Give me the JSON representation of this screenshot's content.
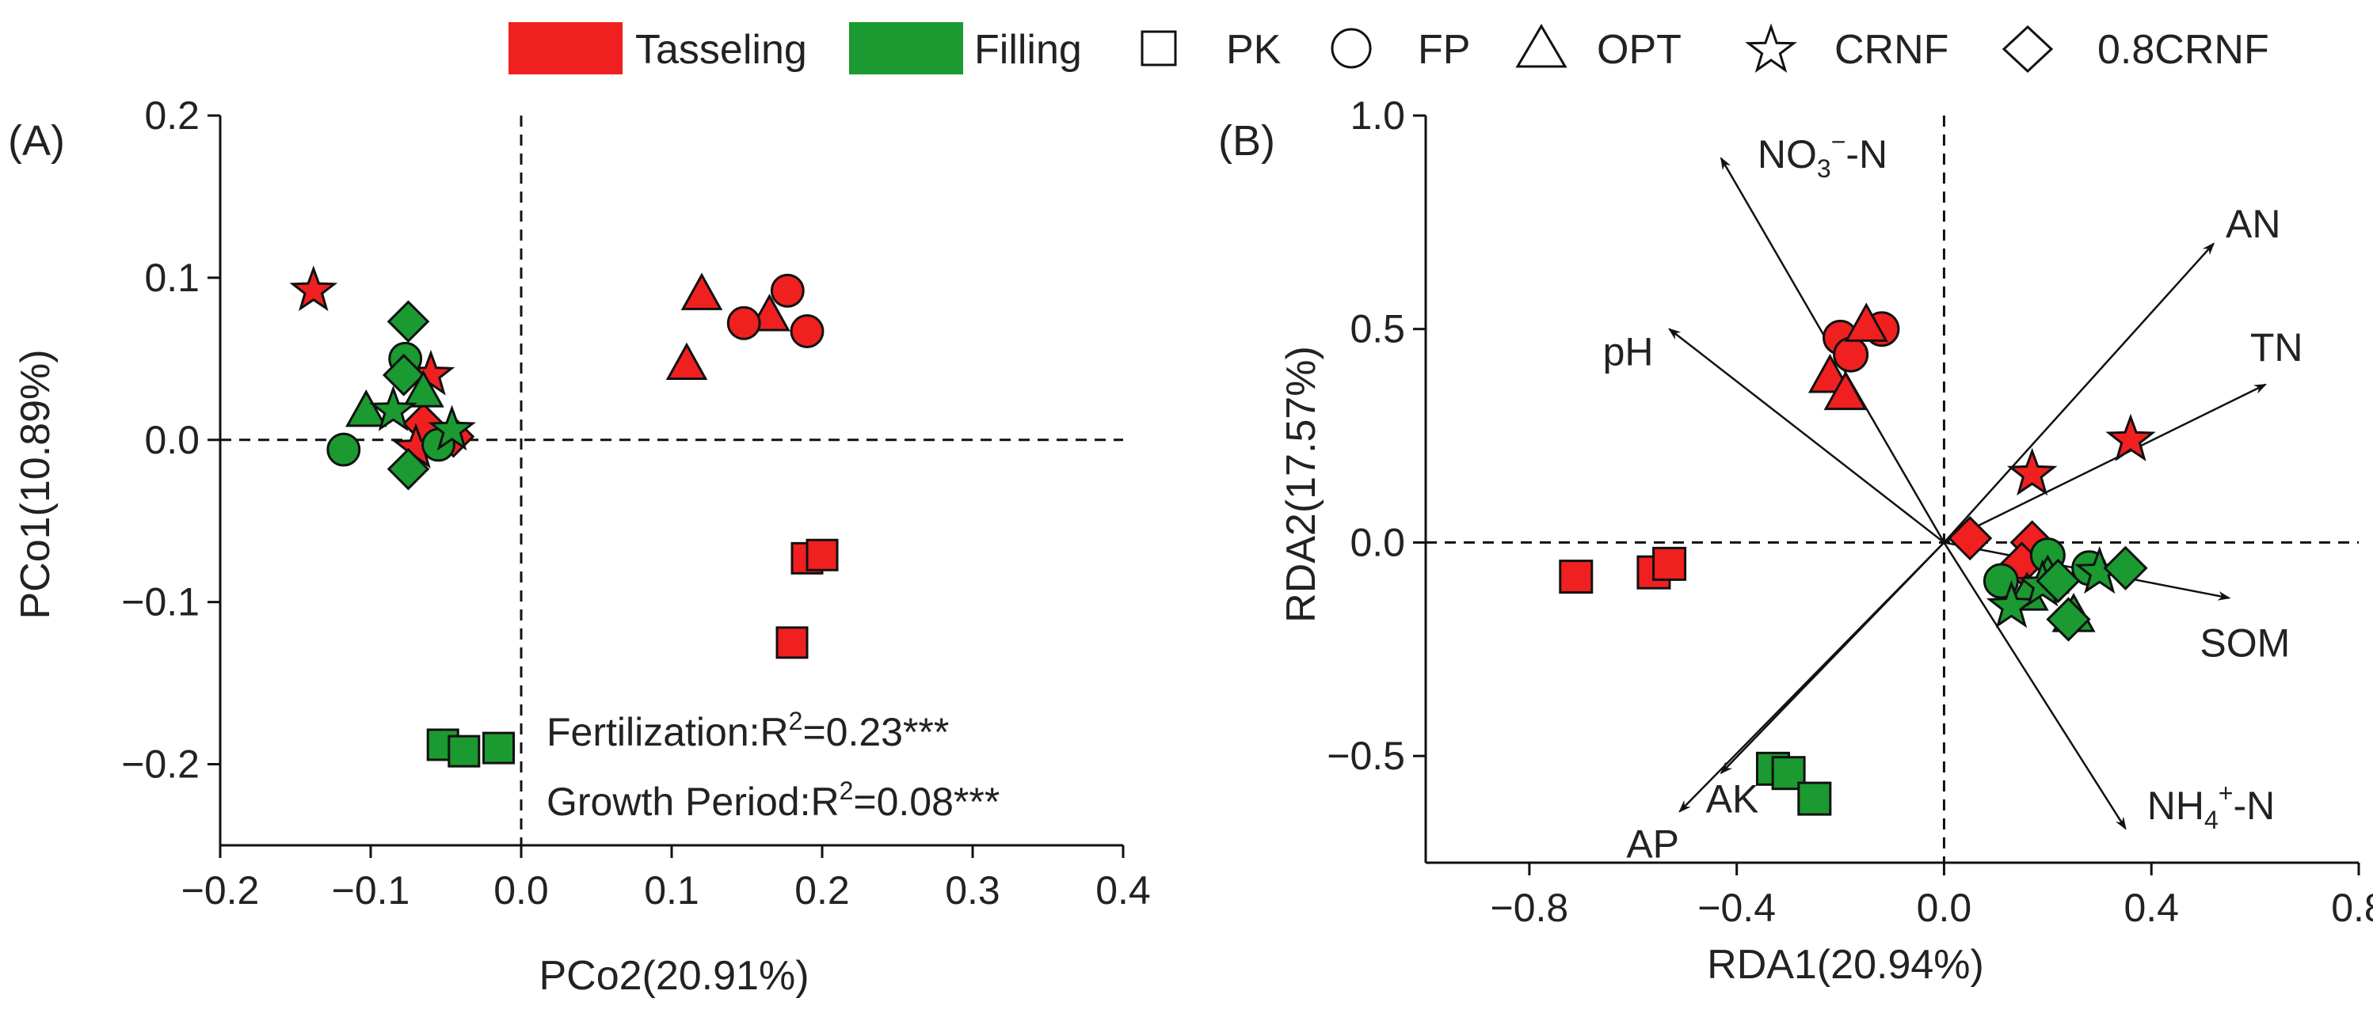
{
  "legend": {
    "colors": [
      {
        "label": "Tasseling",
        "color": "#f02020"
      },
      {
        "label": "Filling",
        "color": "#1a9a30"
      }
    ],
    "shapes": [
      {
        "label": "PK",
        "shape": "square"
      },
      {
        "label": "FP",
        "shape": "circle"
      },
      {
        "label": "OPT",
        "shape": "triangle"
      },
      {
        "label": "CRNF",
        "shape": "star"
      },
      {
        "label": "0.8CRNF",
        "shape": "diamond"
      }
    ]
  },
  "chart_data": [
    {
      "type": "scatter",
      "panel_label": "(A)",
      "xlabel": "PCo2(20.91%)",
      "ylabel": "PCo1(10.89%)",
      "xlim": [
        -0.2,
        0.4
      ],
      "ylim": [
        -0.25,
        0.2
      ],
      "xticks": [
        -0.2,
        -0.1,
        0.0,
        0.1,
        0.2,
        0.3,
        0.4
      ],
      "xticklabels": [
        "−0.2",
        "−0.1",
        "0.0",
        "0.1",
        "0.2",
        "0.3",
        "0.4"
      ],
      "yticks": [
        -0.2,
        -0.1,
        0.0,
        0.1,
        0.2
      ],
      "yticklabels": [
        "−0.2",
        "−0.1",
        "0.0",
        "0.1",
        "0.2"
      ],
      "reference_lines": {
        "x": 0,
        "y": 0,
        "style": "dashed"
      },
      "annotations": [
        {
          "prefix": "Fertilization:R",
          "sup": "2",
          "suffix": "=0.23***"
        },
        {
          "prefix": "Growth Period:R",
          "sup": "2",
          "suffix": "=0.08***"
        }
      ],
      "points": [
        {
          "x": -0.138,
          "y": 0.092,
          "shape": "star",
          "group": "Tasseling"
        },
        {
          "x": -0.06,
          "y": 0.04,
          "shape": "star",
          "group": "Tasseling"
        },
        {
          "x": -0.065,
          "y": 0.01,
          "shape": "diamond",
          "group": "Tasseling"
        },
        {
          "x": -0.045,
          "y": 0.002,
          "shape": "diamond",
          "group": "Tasseling"
        },
        {
          "x": -0.07,
          "y": -0.005,
          "shape": "star",
          "group": "Tasseling"
        },
        {
          "x": 0.12,
          "y": 0.09,
          "shape": "triangle",
          "group": "Tasseling"
        },
        {
          "x": 0.11,
          "y": 0.047,
          "shape": "triangle",
          "group": "Tasseling"
        },
        {
          "x": 0.165,
          "y": 0.077,
          "shape": "triangle",
          "group": "Tasseling"
        },
        {
          "x": 0.148,
          "y": 0.072,
          "shape": "circle",
          "group": "Tasseling"
        },
        {
          "x": 0.177,
          "y": 0.092,
          "shape": "circle",
          "group": "Tasseling"
        },
        {
          "x": 0.19,
          "y": 0.067,
          "shape": "circle",
          "group": "Tasseling"
        },
        {
          "x": 0.19,
          "y": -0.073,
          "shape": "square",
          "group": "Tasseling"
        },
        {
          "x": 0.2,
          "y": -0.071,
          "shape": "square",
          "group": "Tasseling"
        },
        {
          "x": 0.18,
          "y": -0.125,
          "shape": "square",
          "group": "Tasseling"
        },
        {
          "x": -0.075,
          "y": 0.073,
          "shape": "diamond",
          "group": "Filling"
        },
        {
          "x": -0.077,
          "y": 0.05,
          "shape": "circle",
          "group": "Filling"
        },
        {
          "x": -0.078,
          "y": 0.04,
          "shape": "diamond",
          "group": "Filling"
        },
        {
          "x": -0.065,
          "y": 0.03,
          "shape": "triangle",
          "group": "Filling"
        },
        {
          "x": -0.103,
          "y": 0.018,
          "shape": "triangle",
          "group": "Filling"
        },
        {
          "x": -0.085,
          "y": 0.018,
          "shape": "star",
          "group": "Filling"
        },
        {
          "x": -0.118,
          "y": -0.006,
          "shape": "circle",
          "group": "Filling"
        },
        {
          "x": -0.055,
          "y": -0.003,
          "shape": "circle",
          "group": "Filling"
        },
        {
          "x": -0.046,
          "y": 0.006,
          "shape": "star",
          "group": "Filling"
        },
        {
          "x": -0.075,
          "y": -0.018,
          "shape": "diamond",
          "group": "Filling"
        },
        {
          "x": -0.052,
          "y": -0.188,
          "shape": "square",
          "group": "Filling"
        },
        {
          "x": -0.038,
          "y": -0.192,
          "shape": "square",
          "group": "Filling"
        },
        {
          "x": -0.015,
          "y": -0.19,
          "shape": "square",
          "group": "Filling"
        }
      ]
    },
    {
      "type": "biplot",
      "panel_label": "(B)",
      "xlabel": "RDA1(20.94%)",
      "ylabel": "RDA2(17.57%)",
      "xlim": [
        -1.0,
        0.8
      ],
      "ylim": [
        -0.75,
        1.0
      ],
      "xticks": [
        -0.8,
        -0.4,
        0.0,
        0.4,
        0.8
      ],
      "xticklabels": [
        "−0.8",
        "−0.4",
        "0.0",
        "0.4",
        "0.8"
      ],
      "yticks": [
        -0.5,
        0.0,
        0.5,
        1.0
      ],
      "yticklabels": [
        "−0.5",
        "0.0",
        "0.5",
        "1.0"
      ],
      "reference_lines": {
        "x": 0,
        "y": 0,
        "style": "dashed"
      },
      "vectors": [
        {
          "name": "NO3--N",
          "label_main": "NO",
          "label_sub": "3",
          "label_sup": "−",
          "label_end": "-N",
          "x": -0.43,
          "y": 0.9
        },
        {
          "name": "AN",
          "label_main": "AN",
          "x": 0.52,
          "y": 0.7
        },
        {
          "name": "TN",
          "label_main": "TN",
          "x": 0.62,
          "y": 0.37
        },
        {
          "name": "pH",
          "label_main": "pH",
          "x": -0.53,
          "y": 0.5
        },
        {
          "name": "SOM",
          "label_main": "SOM",
          "x": 0.55,
          "y": -0.13
        },
        {
          "name": "NH4+-N",
          "label_main": "NH",
          "label_sub": "4",
          "label_sup": "+",
          "label_end": "-N",
          "x": 0.35,
          "y": -0.67
        },
        {
          "name": "AP",
          "label_main": "AP",
          "x": -0.51,
          "y": -0.63
        },
        {
          "name": "AK",
          "label_main": "AK",
          "x": -0.43,
          "y": -0.54
        }
      ],
      "points": [
        {
          "x": -0.2,
          "y": 0.48,
          "shape": "circle",
          "group": "Tasseling"
        },
        {
          "x": -0.12,
          "y": 0.5,
          "shape": "circle",
          "group": "Tasseling"
        },
        {
          "x": -0.18,
          "y": 0.44,
          "shape": "circle",
          "group": "Tasseling"
        },
        {
          "x": -0.15,
          "y": 0.51,
          "shape": "triangle",
          "group": "Tasseling"
        },
        {
          "x": -0.22,
          "y": 0.39,
          "shape": "triangle",
          "group": "Tasseling"
        },
        {
          "x": -0.19,
          "y": 0.35,
          "shape": "triangle",
          "group": "Tasseling"
        },
        {
          "x": 0.36,
          "y": 0.24,
          "shape": "star",
          "group": "Tasseling"
        },
        {
          "x": 0.17,
          "y": 0.16,
          "shape": "star",
          "group": "Tasseling"
        },
        {
          "x": 0.17,
          "y": 0.0,
          "shape": "diamond",
          "group": "Tasseling"
        },
        {
          "x": 0.05,
          "y": 0.01,
          "shape": "diamond",
          "group": "Tasseling"
        },
        {
          "x": 0.15,
          "y": -0.05,
          "shape": "diamond",
          "group": "Tasseling"
        },
        {
          "x": -0.71,
          "y": -0.08,
          "shape": "square",
          "group": "Tasseling"
        },
        {
          "x": -0.56,
          "y": -0.07,
          "shape": "square",
          "group": "Tasseling"
        },
        {
          "x": -0.53,
          "y": -0.05,
          "shape": "square",
          "group": "Tasseling"
        },
        {
          "x": 0.11,
          "y": -0.09,
          "shape": "circle",
          "group": "Filling"
        },
        {
          "x": 0.28,
          "y": -0.06,
          "shape": "circle",
          "group": "Filling"
        },
        {
          "x": 0.2,
          "y": -0.03,
          "shape": "circle",
          "group": "Filling"
        },
        {
          "x": 0.2,
          "y": -0.08,
          "shape": "triangle",
          "group": "Filling"
        },
        {
          "x": 0.25,
          "y": -0.17,
          "shape": "triangle",
          "group": "Filling"
        },
        {
          "x": 0.16,
          "y": -0.12,
          "shape": "triangle",
          "group": "Filling"
        },
        {
          "x": 0.13,
          "y": -0.15,
          "shape": "star",
          "group": "Filling"
        },
        {
          "x": 0.3,
          "y": -0.07,
          "shape": "star",
          "group": "Filling"
        },
        {
          "x": 0.19,
          "y": -0.1,
          "shape": "star",
          "group": "Filling"
        },
        {
          "x": 0.35,
          "y": -0.06,
          "shape": "diamond",
          "group": "Filling"
        },
        {
          "x": 0.24,
          "y": -0.18,
          "shape": "diamond",
          "group": "Filling"
        },
        {
          "x": 0.22,
          "y": -0.09,
          "shape": "diamond",
          "group": "Filling"
        },
        {
          "x": -0.33,
          "y": -0.53,
          "shape": "square",
          "group": "Filling"
        },
        {
          "x": -0.3,
          "y": -0.54,
          "shape": "square",
          "group": "Filling"
        },
        {
          "x": -0.25,
          "y": -0.6,
          "shape": "square",
          "group": "Filling"
        }
      ]
    }
  ]
}
